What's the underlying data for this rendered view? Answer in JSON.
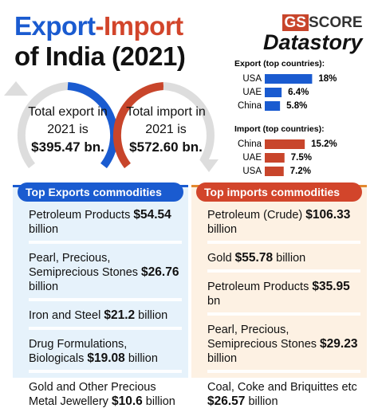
{
  "title": [
    "Export",
    "-Import",
    "of India (2021)"
  ],
  "logo": {
    "brand1": "GS",
    "brand2": "SCORE",
    "sub": "Datastory"
  },
  "total_export": {
    "text": "Total export in 2021 is",
    "amount": "$395.47 bn."
  },
  "total_import": {
    "text": "Total import in 2021 is",
    "amount": "$572.60 bn."
  },
  "export_chart": {
    "type": "bar",
    "title": "Export (top countries):",
    "categories": [
      "USA",
      "UAE",
      "China"
    ],
    "values": [
      18,
      6.4,
      5.8
    ],
    "value_labels": [
      "18%",
      "6.4%",
      "5.8%"
    ],
    "color": "#1a5bd0"
  },
  "import_chart": {
    "type": "bar",
    "title": "Import (top countries):",
    "categories": [
      "China",
      "UAE",
      "USA"
    ],
    "values": [
      15.2,
      7.5,
      7.2
    ],
    "value_labels": [
      "15.2%",
      "7.5%",
      "7.2%"
    ],
    "color": "#c8452b"
  },
  "export_commodities": {
    "title": "Top Exports commodities",
    "items": [
      {
        "name": "Petroleum Products",
        "amount": "$54.54",
        "unit": "billion"
      },
      {
        "name": "Pearl, Precious, Semiprecious Stones",
        "amount": "$26.76",
        "unit": "billion"
      },
      {
        "name": "Iron and Steel",
        "amount": "$21.2",
        "unit": "billion"
      },
      {
        "name": "Drug Formulations, Biologicals",
        "amount": "$19.08",
        "unit": "billion"
      },
      {
        "name": "Gold and Other Precious Metal Jewellery",
        "amount": "$10.6",
        "unit": "billion"
      }
    ]
  },
  "import_commodities": {
    "title": "Top imports commodities",
    "items": [
      {
        "name": "Petroleum (Crude)",
        "amount": "$106.33",
        "unit": "billion"
      },
      {
        "name": "Gold",
        "amount": "$55.78",
        "unit": "billion"
      },
      {
        "name": "Petroleum Products",
        "amount": "$35.95",
        "unit": "bn"
      },
      {
        "name": "Pearl, Precious, Semiprecious Stones",
        "amount": "$29.23",
        "unit": "billion"
      },
      {
        "name": "Coal, Coke and Briquittes etc",
        "amount": "$26.57",
        "unit": "billion"
      }
    ]
  }
}
